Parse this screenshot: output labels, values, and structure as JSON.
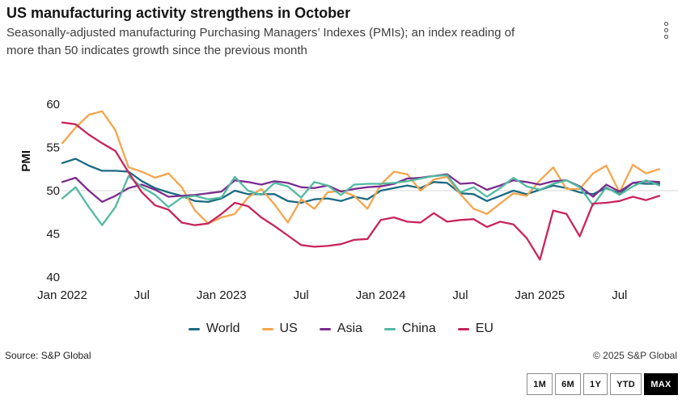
{
  "header": {
    "title": "US manufacturing activity strengthens in October",
    "subtitle": "Seasonally-adjusted manufacturing Purchasing Managers’ Indexes (PMIs); an index reading of more than 50 indicates growth since the previous month"
  },
  "chart_data": {
    "type": "line",
    "y_axis_label": "PMI",
    "ylim": [
      40,
      60
    ],
    "y_ticks": [
      "60",
      "55",
      "50",
      "45",
      "40"
    ],
    "y_tick_values": [
      60,
      55,
      50,
      45,
      40
    ],
    "y_gridlines": [
      50
    ],
    "gridline_color": "#d9d9d9",
    "legend_position": "bottom",
    "x_ticks": [
      {
        "label": "Jan 2022",
        "month_index": 0
      },
      {
        "label": "Jul",
        "month_index": 6
      },
      {
        "label": "Jan 2023",
        "month_index": 12
      },
      {
        "label": "Jul",
        "month_index": 18
      },
      {
        "label": "Jan 2024",
        "month_index": 24
      },
      {
        "label": "Jul",
        "month_index": 30
      },
      {
        "label": "Jan 2025",
        "month_index": 36
      },
      {
        "label": "Jul",
        "month_index": 42
      }
    ],
    "months": [
      "Jan 2022",
      "Feb 2022",
      "Mar 2022",
      "Apr 2022",
      "May 2022",
      "Jun 2022",
      "Jul 2022",
      "Aug 2022",
      "Sep 2022",
      "Oct 2022",
      "Nov 2022",
      "Dec 2022",
      "Jan 2023",
      "Feb 2023",
      "Mar 2023",
      "Apr 2023",
      "May 2023",
      "Jun 2023",
      "Jul 2023",
      "Aug 2023",
      "Sep 2023",
      "Oct 2023",
      "Nov 2023",
      "Dec 2023",
      "Jan 2024",
      "Feb 2024",
      "Mar 2024",
      "Apr 2024",
      "May 2024",
      "Jun 2024",
      "Jul 2024",
      "Aug 2024",
      "Sep 2024",
      "Oct 2024",
      "Nov 2024",
      "Dec 2024",
      "Jan 2025",
      "Feb 2025",
      "Mar 2025",
      "Apr 2025",
      "May 2025",
      "Jun 2025",
      "Jul 2025",
      "Aug 2025",
      "Sep 2025",
      "Oct 2025"
    ],
    "series": [
      {
        "name": "World",
        "color": "#1a6a82",
        "values": [
          53.2,
          53.7,
          52.9,
          52.3,
          52.3,
          52.2,
          51.1,
          50.3,
          49.8,
          49.4,
          48.8,
          48.7,
          49.1,
          50.0,
          49.6,
          49.6,
          49.6,
          48.8,
          48.6,
          49.0,
          49.1,
          48.8,
          49.3,
          49.0,
          50.0,
          50.3,
          50.6,
          50.3,
          51.0,
          50.9,
          49.7,
          49.6,
          48.8,
          49.4,
          50.0,
          49.6,
          50.1,
          50.6,
          50.3,
          49.8,
          49.6,
          50.3,
          49.7,
          50.9,
          50.8,
          50.8
        ]
      },
      {
        "name": "US",
        "color": "#f5a54c",
        "values": [
          55.5,
          57.3,
          58.8,
          59.2,
          57.0,
          52.7,
          52.2,
          51.5,
          52.0,
          50.4,
          47.7,
          46.2,
          46.9,
          47.3,
          49.2,
          50.2,
          48.4,
          46.3,
          49.0,
          47.9,
          49.8,
          50.0,
          49.4,
          47.9,
          50.7,
          52.2,
          51.9,
          50.0,
          51.3,
          51.6,
          49.6,
          47.9,
          47.3,
          48.5,
          49.7,
          49.4,
          51.2,
          52.7,
          50.2,
          50.2,
          52.0,
          52.9,
          49.8,
          53.0,
          52.0,
          52.5
        ]
      },
      {
        "name": "Asia",
        "color": "#7b2d8e",
        "values": [
          51.0,
          51.5,
          50.0,
          48.7,
          49.4,
          50.3,
          50.7,
          50.1,
          49.3,
          49.4,
          49.5,
          49.7,
          49.9,
          51.2,
          51.0,
          50.7,
          51.1,
          50.9,
          50.4,
          50.3,
          50.6,
          49.9,
          50.2,
          50.4,
          50.5,
          50.8,
          51.4,
          51.5,
          51.7,
          51.9,
          50.8,
          50.9,
          50.1,
          50.6,
          51.2,
          51.0,
          50.7,
          51.1,
          51.2,
          50.5,
          49.3,
          50.7,
          49.9,
          50.9,
          51.1,
          51.0
        ]
      },
      {
        "name": "China",
        "color": "#52b9a2",
        "values": [
          49.1,
          50.4,
          48.1,
          46.0,
          48.1,
          51.7,
          50.4,
          49.5,
          48.1,
          49.2,
          49.4,
          49.0,
          49.2,
          51.6,
          50.0,
          49.5,
          50.9,
          50.5,
          49.2,
          51.0,
          50.6,
          49.5,
          50.7,
          50.8,
          50.8,
          50.9,
          51.1,
          51.4,
          51.7,
          51.8,
          49.8,
          50.4,
          49.3,
          50.3,
          51.5,
          50.5,
          50.1,
          50.8,
          51.2,
          50.4,
          48.3,
          50.4,
          49.5,
          50.5,
          51.2,
          50.6
        ]
      },
      {
        "name": "EU",
        "color": "#c8255c",
        "values": [
          57.9,
          57.7,
          56.5,
          55.5,
          54.6,
          52.1,
          49.8,
          48.3,
          47.8,
          46.3,
          46.0,
          46.2,
          47.3,
          48.6,
          48.2,
          46.9,
          45.9,
          44.8,
          43.7,
          43.5,
          43.6,
          43.8,
          44.3,
          44.4,
          46.6,
          46.9,
          46.4,
          46.3,
          47.4,
          46.4,
          46.6,
          46.7,
          45.8,
          46.4,
          46.1,
          44.5,
          42.0,
          47.7,
          47.3,
          44.7,
          48.5,
          48.6,
          48.8,
          49.3,
          48.9,
          49.4
        ]
      }
    ]
  },
  "footer": {
    "source": "Source: S&P Global",
    "copyright": "© 2025 S&P Global"
  },
  "controls": {
    "range_buttons": [
      {
        "label": "1M",
        "active": false
      },
      {
        "label": "6M",
        "active": false
      },
      {
        "label": "1Y",
        "active": false
      },
      {
        "label": "YTD",
        "active": false
      },
      {
        "label": "MAX",
        "active": true
      }
    ]
  }
}
